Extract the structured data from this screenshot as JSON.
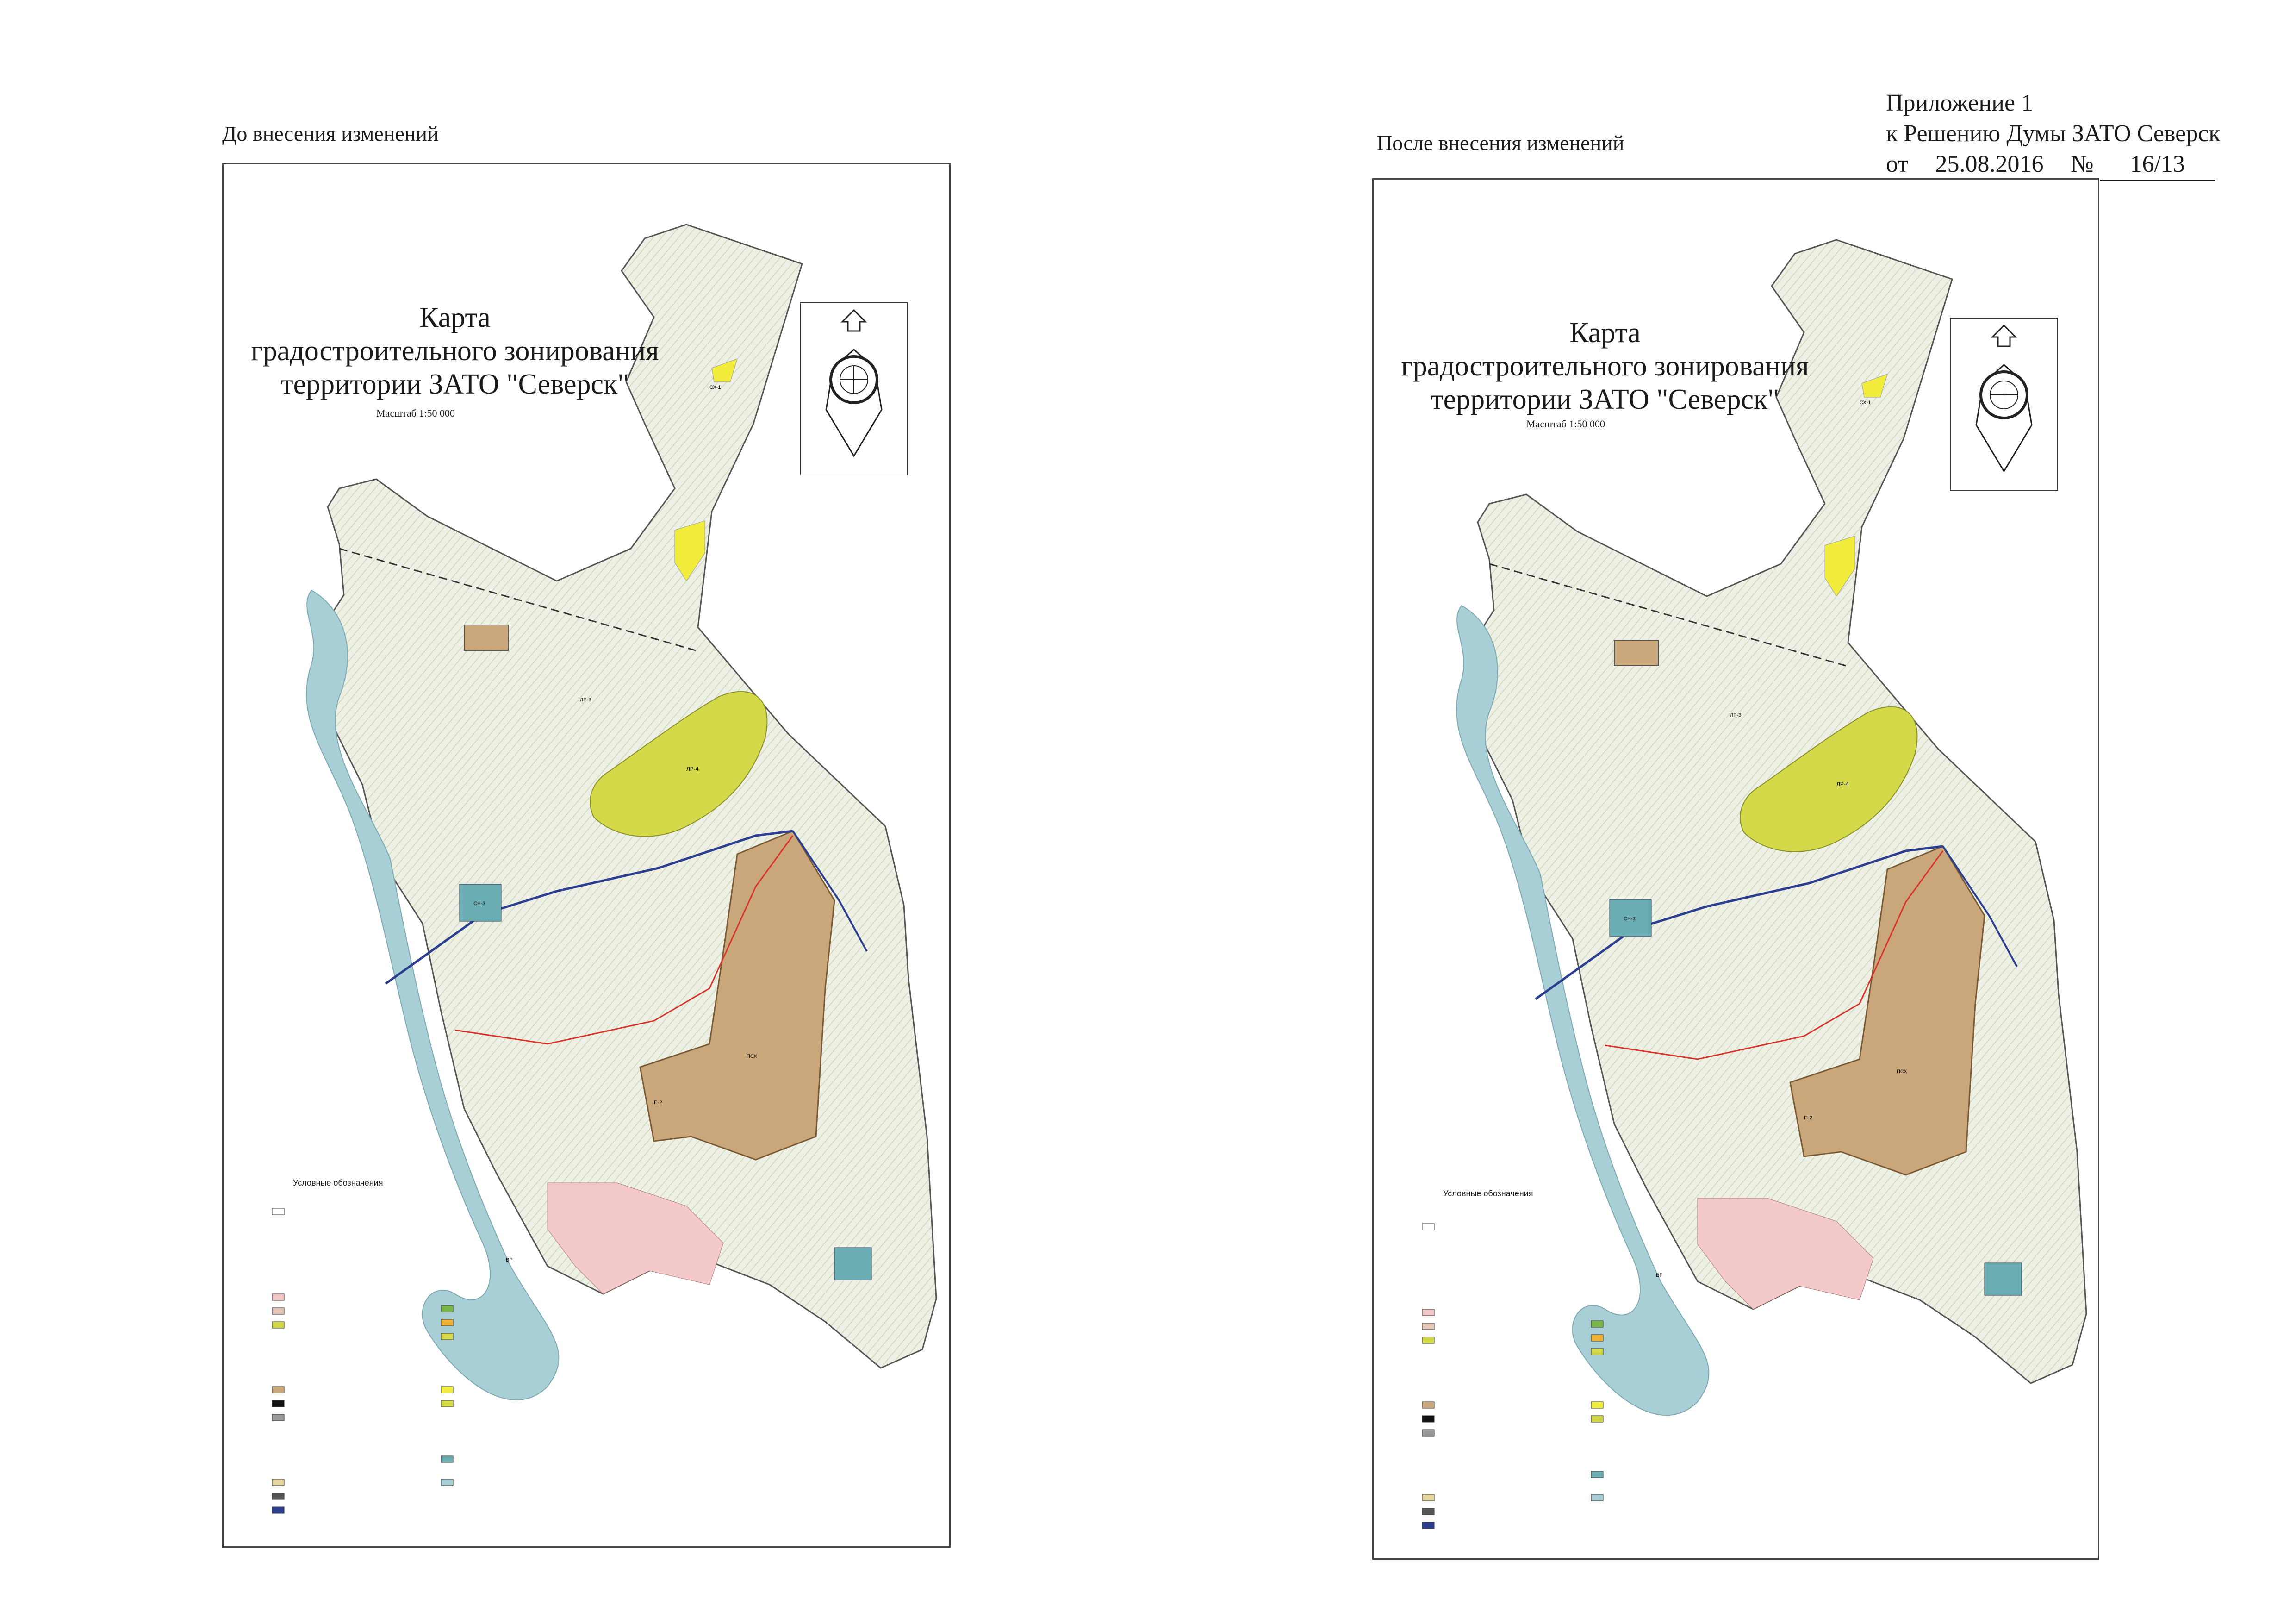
{
  "captions": {
    "before": "До внесения изменений",
    "after": "После внесения изменений"
  },
  "annex": {
    "line1": "Приложение 1",
    "line2": "к Решению Думы ЗАТО Северск",
    "date_prefix": "от",
    "date": "25.08.2016",
    "number_prefix": "№",
    "number": "16/13"
  },
  "map": {
    "title_line1": "Карта",
    "title_line2": "градостроительного зонирования",
    "title_line3": "территории ЗАТО \"Северск\"",
    "scale": "Масштаб 1:50 000",
    "legend_title": "Условные обозначения",
    "zone_labels": {
      "lr4": "ЛР-4",
      "lr3": "ЛР-3",
      "lr6": "ЛР-6",
      "cx1": "СХ-1",
      "cx3": "СХ-3",
      "cn3": "СН-3",
      "psh": "ПСХ",
      "p2": "П-2",
      "p1": "П-1",
      "vr": "ВР",
      "sh1": "СХ-1"
    },
    "colors": {
      "territory": "#eef0e6",
      "forest_hatch": "#c9d8b0",
      "recreation": "#d4d94a",
      "agriculture": "#f2ec3c",
      "industrial_pkh": "#c9a77b",
      "water": "#a9cfd6",
      "special": "#6aaeb3",
      "residential": "#f3c9c9",
      "boundary": "#555555",
      "road_blue": "#2b3e8f",
      "line_red": "#d7332a"
    }
  }
}
